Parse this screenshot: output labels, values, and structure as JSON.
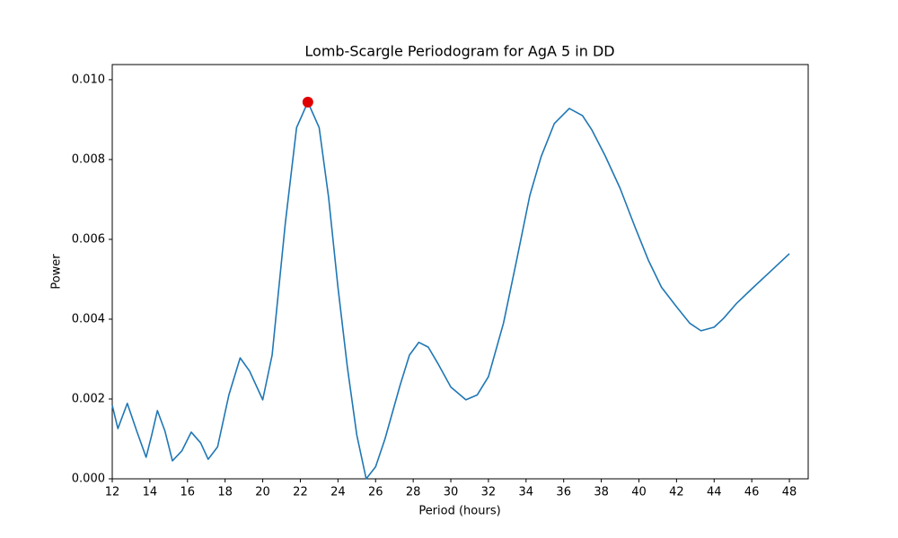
{
  "chart_data": {
    "type": "line",
    "title": "Lomb-Scargle Periodogram for AgA 5 in DD",
    "xlabel": "Period (hours)",
    "ylabel": "Power",
    "x": [
      12,
      12.3,
      12.8,
      13.3,
      13.8,
      14.1,
      14.4,
      14.8,
      15.2,
      15.7,
      16.2,
      16.7,
      17.1,
      17.6,
      18.2,
      18.8,
      19.3,
      20,
      20.5,
      21.2,
      21.8,
      22.4,
      23,
      23.5,
      24,
      24.5,
      25,
      25.5,
      26,
      26.5,
      27.3,
      27.8,
      28.3,
      28.8,
      29.3,
      30,
      30.8,
      31.4,
      32,
      32.8,
      33.5,
      34.2,
      34.8,
      35.5,
      36.3,
      37,
      37.5,
      38.2,
      39,
      39.8,
      40.5,
      41.2,
      42,
      42.7,
      43.3,
      44,
      44.5,
      45.2,
      46,
      47,
      48
    ],
    "values": [
      0.00184,
      0.00126,
      0.00189,
      0.0012,
      0.00054,
      0.0011,
      0.00171,
      0.0012,
      0.00045,
      0.0007,
      0.00117,
      0.0009,
      0.00049,
      0.0008,
      0.0021,
      0.00303,
      0.0027,
      0.00198,
      0.0031,
      0.0064,
      0.0088,
      0.00944,
      0.0088,
      0.00706,
      0.0048,
      0.0028,
      0.0011,
      0,
      0.0003,
      0.001,
      0.00234,
      0.0031,
      0.00342,
      0.0033,
      0.0029,
      0.0023,
      0.00198,
      0.0021,
      0.00256,
      0.0039,
      0.00548,
      0.0071,
      0.00807,
      0.0089,
      0.00928,
      0.0091,
      0.00874,
      0.0081,
      0.00728,
      0.0063,
      0.00548,
      0.0048,
      0.00431,
      0.0039,
      0.00371,
      0.0038,
      0.00402,
      0.0044,
      0.00476,
      0.0052,
      0.00564
    ],
    "color": "#1f77b4",
    "highlight": {
      "x": 22.4,
      "value": 0.00944,
      "color": "#e00000"
    },
    "xlim": [
      12,
      49
    ],
    "ylim": [
      0,
      0.01038
    ],
    "xticks": [
      12,
      14,
      16,
      18,
      20,
      22,
      24,
      26,
      28,
      30,
      32,
      34,
      36,
      38,
      40,
      42,
      44,
      46,
      48
    ],
    "yticks": [
      {
        "value": 0,
        "label": "0.000"
      },
      {
        "value": 0.002,
        "label": "0.002"
      },
      {
        "value": 0.004,
        "label": "0.004"
      },
      {
        "value": 0.006,
        "label": "0.006"
      },
      {
        "value": 0.008,
        "label": "0.008"
      },
      {
        "value": 0.01,
        "label": "0.010"
      }
    ],
    "grid": false
  }
}
